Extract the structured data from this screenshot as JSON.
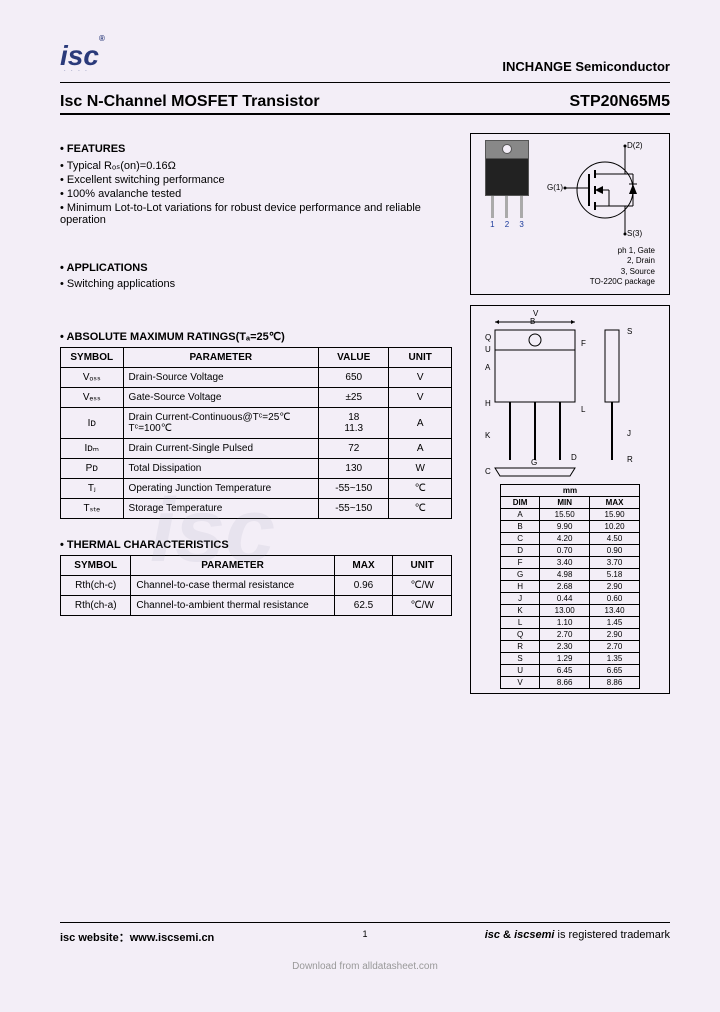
{
  "header": {
    "logo_text": "isc",
    "logo_reg": "®",
    "company": "INCHANGE Semiconductor"
  },
  "title": {
    "left": "Isc N-Channel MOSFET Transistor",
    "right": "STP20N65M5"
  },
  "features": {
    "heading": "FEATURES",
    "items": [
      "Typical Rₒₛ(on)=0.16Ω",
      "Excellent switching performance",
      "100% avalanche tested",
      "Minimum Lot-to-Lot variations for robust device performance and reliable operation"
    ]
  },
  "applications": {
    "heading": "APPLICATIONS",
    "items": [
      "Switching applications"
    ]
  },
  "pinout": {
    "nums": [
      "1",
      "2",
      "3"
    ],
    "d": "D(2)",
    "g": "G(1)",
    "s": "S(3)",
    "legend": [
      "ph 1, Gate",
      "2, Drain",
      "3, Source",
      "TO-220C package"
    ]
  },
  "ratings": {
    "heading": "ABSOLUTE MAXIMUM RATINGS(Tₐ=25℃)",
    "cols": [
      "SYMBOL",
      "PARAMETER",
      "VALUE",
      "UNIT"
    ],
    "rows": [
      {
        "sym": "Vₒₛₛ",
        "param": "Drain-Source Voltage",
        "val": "650",
        "unit": "V"
      },
      {
        "sym": "Vₑₛₛ",
        "param": "Gate-Source Voltage",
        "val": "±25",
        "unit": "V"
      },
      {
        "sym": "Iᴅ",
        "param": "Drain Current-Continuous@Tᶜ=25℃\nTᶜ=100℃",
        "val": "18\n11.3",
        "unit": "A"
      },
      {
        "sym": "Iᴅₘ",
        "param": "Drain Current-Single Pulsed",
        "val": "72",
        "unit": "A"
      },
      {
        "sym": "Pᴅ",
        "param": "Total Dissipation",
        "val": "130",
        "unit": "W"
      },
      {
        "sym": "Tⱼ",
        "param": "Operating Junction Temperature",
        "val": "-55~150",
        "unit": "℃"
      },
      {
        "sym": "Tₛₜₑ",
        "param": "Storage Temperature",
        "val": "-55~150",
        "unit": "℃"
      }
    ]
  },
  "thermal": {
    "heading": "THERMAL CHARACTERISTICS",
    "cols": [
      "SYMBOL",
      "PARAMETER",
      "MAX",
      "UNIT"
    ],
    "rows": [
      {
        "sym": "Rth(ch-c)",
        "param": "Channel-to-case thermal resistance",
        "val": "0.96",
        "unit": "℃/W"
      },
      {
        "sym": "Rth(ch-a)",
        "param": "Channel-to-ambient thermal resistance",
        "val": "62.5",
        "unit": "℃/W"
      }
    ]
  },
  "dims": {
    "unit_head": "mm",
    "cols": [
      "DIM",
      "MIN",
      "MAX"
    ],
    "rows": [
      [
        "A",
        "15.50",
        "15.90"
      ],
      [
        "B",
        "9.90",
        "10.20"
      ],
      [
        "C",
        "4.20",
        "4.50"
      ],
      [
        "D",
        "0.70",
        "0.90"
      ],
      [
        "F",
        "3.40",
        "3.70"
      ],
      [
        "G",
        "4.98",
        "5.18"
      ],
      [
        "H",
        "2.68",
        "2.90"
      ],
      [
        "J",
        "0.44",
        "0.60"
      ],
      [
        "K",
        "13.00",
        "13.40"
      ],
      [
        "L",
        "1.10",
        "1.45"
      ],
      [
        "Q",
        "2.70",
        "2.90"
      ],
      [
        "R",
        "2.30",
        "2.70"
      ],
      [
        "S",
        "1.29",
        "1.35"
      ],
      [
        "U",
        "6.45",
        "6.65"
      ],
      [
        "V",
        "8.66",
        "8.86"
      ]
    ]
  },
  "footer": {
    "left_label": "isc website：",
    "left_url": "www.iscsemi.cn",
    "page": "1",
    "right": "isc & iscsemi is registered trademark",
    "download": "Download from alldatasheet.com"
  },
  "watermark": "isc"
}
